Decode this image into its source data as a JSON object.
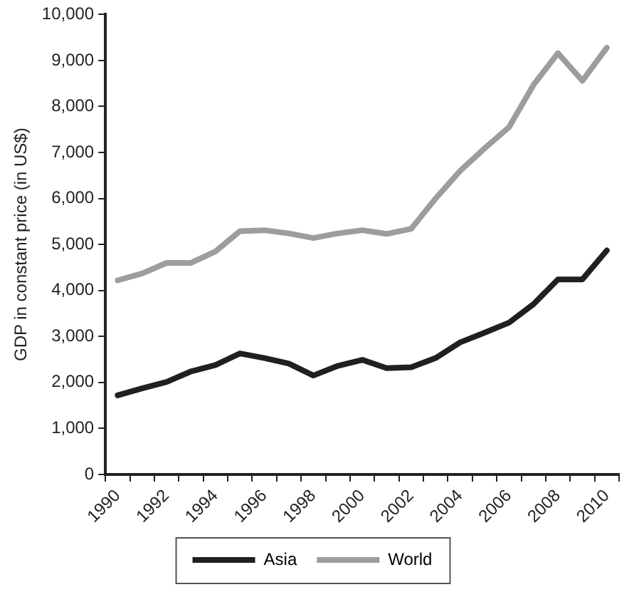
{
  "chart_data": {
    "type": "line",
    "ylabel": "GDP in constant price (in US$)",
    "categories": [
      "1990",
      null,
      "1992",
      null,
      "1994",
      null,
      "1996",
      null,
      "1998",
      null,
      "2000",
      null,
      "2002",
      null,
      "2004",
      null,
      "2006",
      null,
      "2008",
      null,
      "2010"
    ],
    "series": [
      {
        "name": "Asia",
        "color": "#231f20",
        "values": [
          1720,
          1870,
          2010,
          2240,
          2380,
          2630,
          2530,
          2410,
          2150,
          2360,
          2490,
          2310,
          2330,
          2530,
          2870,
          3080,
          3300,
          3700,
          4240,
          4240,
          4870
        ]
      },
      {
        "name": "World",
        "color": "#9d9d9d",
        "values": [
          4220,
          4370,
          4600,
          4600,
          4850,
          5290,
          5310,
          5240,
          5140,
          5240,
          5310,
          5230,
          5340,
          6000,
          6600,
          7090,
          7550,
          8470,
          9160,
          8560,
          9280
        ]
      }
    ],
    "ylim": [
      0,
      10000
    ],
    "yticks": [
      0,
      {
        "value": 1000,
        "label": "1,000"
      },
      {
        "value": 2000,
        "label": "2,000"
      },
      {
        "value": 3000,
        "label": "3,000"
      },
      {
        "value": 4000,
        "label": "4,000"
      },
      {
        "value": 5000,
        "label": "5,000"
      },
      {
        "value": 6000,
        "label": "6,000"
      },
      {
        "value": 7000,
        "label": "7,000"
      },
      {
        "value": 8000,
        "label": "8,000"
      },
      {
        "value": 9000,
        "label": "9,000"
      },
      {
        "value": 10000,
        "label": "10,000"
      }
    ],
    "grid": false,
    "legend": "bottom",
    "marker": "none",
    "line_style": "solid"
  }
}
